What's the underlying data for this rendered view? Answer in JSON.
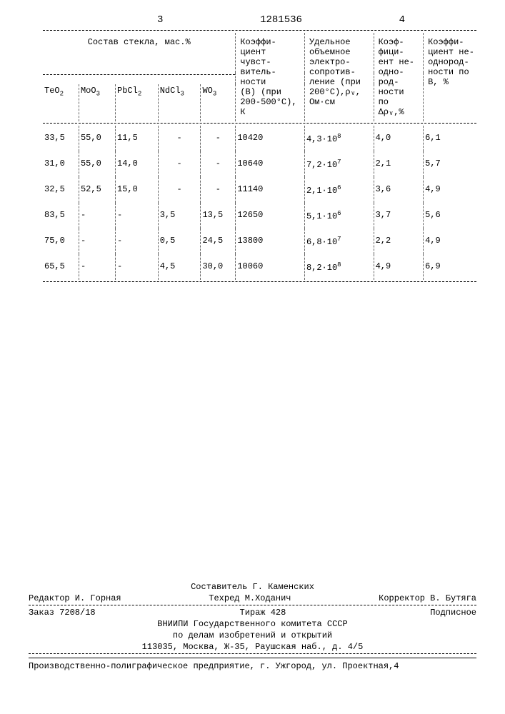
{
  "header": {
    "left_page": "3",
    "doc_number": "1281536",
    "right_page": "4"
  },
  "table": {
    "composition_title": "Состав стекла, мас.%",
    "columns": {
      "c1": "TeO₂",
      "c2": "MoO₃",
      "c3": "PbCl₂",
      "c4": "NdCl₃",
      "c5": "WO₃",
      "c6": "Коэффи-\nциент\nчувст-\nвитель-\nности\n(В) (при\n200-500°С),\nК",
      "c7": "Удельное\nобъемное\nэлектро-\nсопротив-\nление (при\n200°С),ρᵥ,\nОм·см",
      "c8": "Коэф-\nфици-\nент не-\nодно-\nрод-\nности\nпо\nΔρᵥ,%",
      "c9": "Коэффи-\nциент не-\nоднород-\nности по\nВ, %"
    },
    "rows": [
      {
        "c1": "33,5",
        "c2": "55,0",
        "c3": "11,5",
        "c4": "-",
        "c5": "-",
        "c6": "10420",
        "c7": "4,3·10⁸",
        "c8": "4,0",
        "c9": "6,1"
      },
      {
        "c1": "31,0",
        "c2": "55,0",
        "c3": "14,0",
        "c4": "-",
        "c5": "-",
        "c6": "10640",
        "c7": "7,2·10⁷",
        "c8": "2,1",
        "c9": "5,7"
      },
      {
        "c1": "32,5",
        "c2": "52,5",
        "c3": "15,0",
        "c4": "-",
        "c5": "-",
        "c6": "11140",
        "c7": "2,1·10⁶",
        "c8": "3,6",
        "c9": "4,9"
      },
      {
        "c1": "83,5",
        "c2": "-",
        "c3": "-",
        "c4": "3,5",
        "c5": "13,5",
        "c6": "12650",
        "c7": "5,1·10⁶",
        "c8": "3,7",
        "c9": "5,6"
      },
      {
        "c1": "75,0",
        "c2": "-",
        "c3": "-",
        "c4": "0,5",
        "c5": "24,5",
        "c6": "13800",
        "c7": "6,8·10⁷",
        "c8": "2,2",
        "c9": "4,9"
      },
      {
        "c1": "65,5",
        "c2": "-",
        "c3": "-",
        "c4": "4,5",
        "c5": "30,0",
        "c6": "10060",
        "c7": "8,2·10⁸",
        "c8": "4,9",
        "c9": "6,9"
      }
    ]
  },
  "footer": {
    "compiler": "Составитель Г. Каменских",
    "editor": "Редактор И. Горная",
    "techred": "Техред М.Ходанич",
    "corrector": "Корректор В. Бутяга",
    "order": "Заказ 7208/18",
    "tirazh": "Тираж 428",
    "subscription": "Подписное",
    "org1": "ВНИИПИ Государственного комитета СССР",
    "org2": "по делам изобретений и открытий",
    "address": "113035, Москва, Ж-35, Раушская наб., д. 4/5",
    "printery": "Производственно-полиграфическое предприятие, г. Ужгород, ул. Проектная,4"
  }
}
